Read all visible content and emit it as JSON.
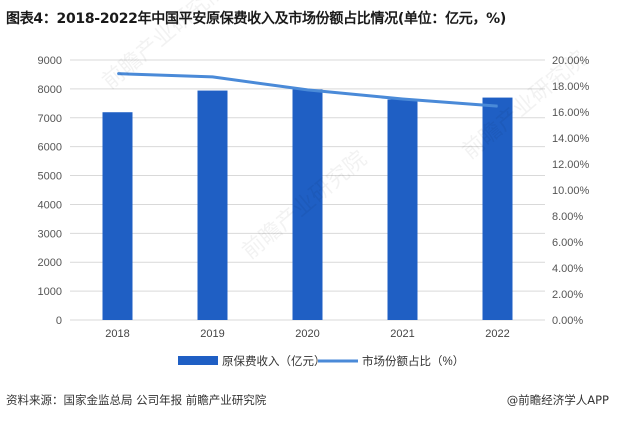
{
  "title": "图表4：2018-2022年中国平安原保费收入及市场份额占比情况(单位：亿元，%)",
  "source": "资料来源：国家金监总局 公司年报 前瞻产业研究院",
  "credit": "@前瞻经济学人APP",
  "watermark": "前瞻产业研究院",
  "chart_data": {
    "type": "bar+line",
    "categories": [
      "2018",
      "2019",
      "2020",
      "2021",
      "2022"
    ],
    "series": [
      {
        "name": "原保费收入（亿元）",
        "type": "bar",
        "axis": "left",
        "color": "#1f5fc4",
        "values": [
          7192,
          7942,
          7983,
          7634,
          7699
        ]
      },
      {
        "name": "市场份额占比（%）",
        "type": "line",
        "axis": "right",
        "color": "#4a8ad8",
        "values": [
          18.95,
          18.7,
          17.7,
          17.0,
          16.45
        ]
      }
    ],
    "ylim_left": [
      0,
      9000
    ],
    "yticks_left": [
      "0",
      "1000",
      "2000",
      "3000",
      "4000",
      "5000",
      "6000",
      "7000",
      "8000",
      "9000"
    ],
    "ylim_right": [
      0,
      20
    ],
    "yticks_right": [
      "0.00%",
      "2.00%",
      "4.00%",
      "6.00%",
      "8.00%",
      "10.00%",
      "12.00%",
      "14.00%",
      "16.00%",
      "18.00%",
      "20.00%"
    ],
    "grid": true,
    "legend": "bottom"
  }
}
